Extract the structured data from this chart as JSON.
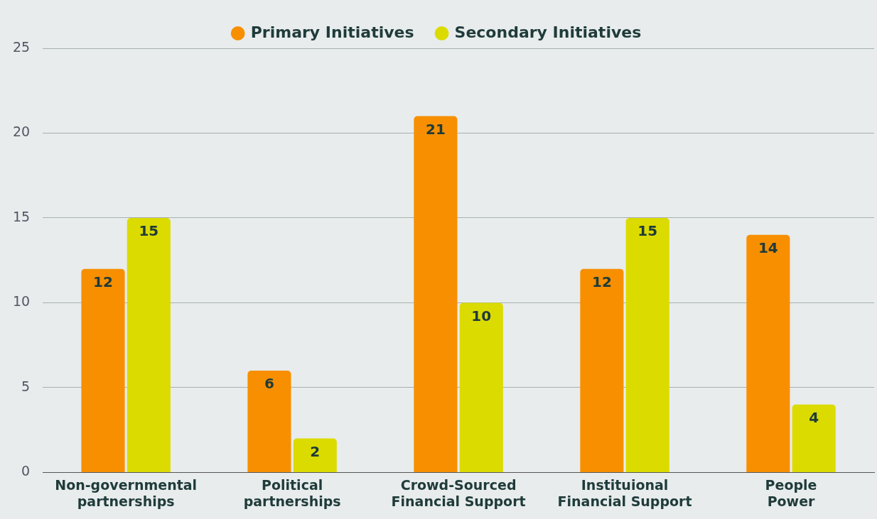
{
  "chart_data": {
    "type": "bar",
    "categories": [
      "Non-governmental partnerships",
      "Political partnerships",
      "Crowd-Sourced Financial Support",
      "Instituional Financial Support",
      "People Power"
    ],
    "series": [
      {
        "name": "Primary Initiatives",
        "color": "#f78f00",
        "values": [
          12,
          6,
          21,
          12,
          14
        ]
      },
      {
        "name": "Secondary Initiatives",
        "color": "#dbdb00",
        "values": [
          15,
          2,
          10,
          15,
          4
        ]
      }
    ],
    "ylim": [
      0,
      25
    ],
    "yticks": [
      0,
      5,
      10,
      15,
      20,
      25
    ],
    "grid": "y",
    "legend": "top",
    "data_labels": true
  }
}
